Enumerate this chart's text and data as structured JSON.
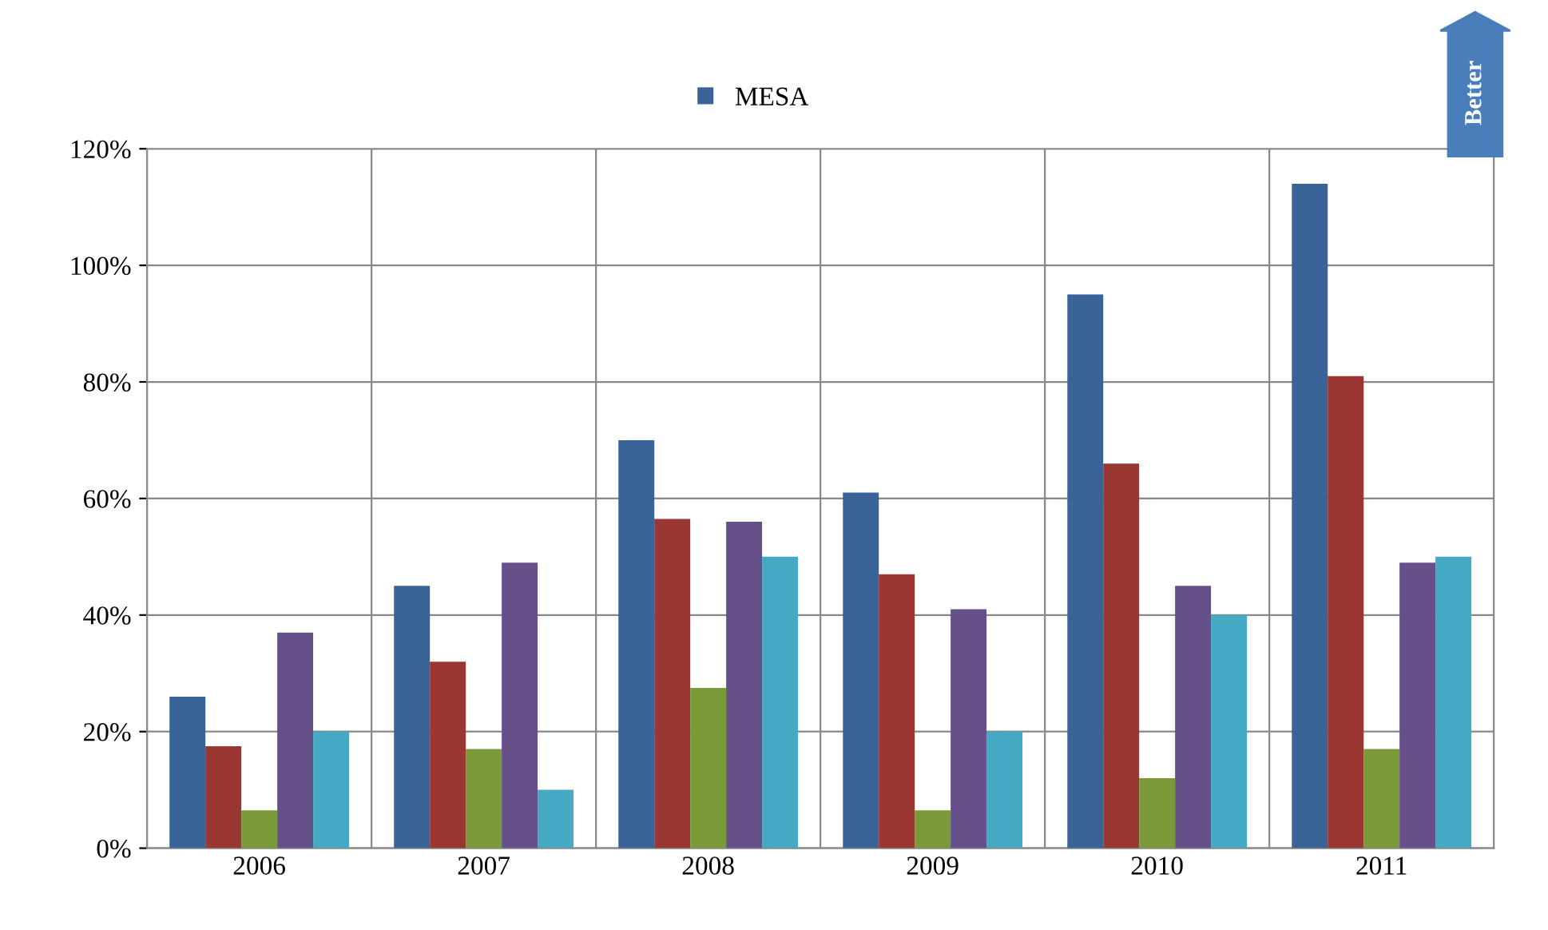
{
  "chart_data": {
    "type": "bar",
    "categories": [
      "2006",
      "2007",
      "2008",
      "2009",
      "2010",
      "2011"
    ],
    "series": [
      {
        "name": "MESA",
        "color": "#3a6398",
        "values": [
          26,
          45,
          70,
          61,
          95,
          114
        ]
      },
      {
        "color": "#9a3733",
        "values": [
          17.5,
          32,
          56.5,
          47,
          66,
          81
        ]
      },
      {
        "color": "#7a9a3a",
        "values": [
          6.5,
          17,
          27.5,
          6.5,
          12,
          17
        ]
      },
      {
        "color": "#65508a",
        "values": [
          37,
          49,
          56,
          41,
          45,
          49
        ]
      },
      {
        "color": "#45a9c4",
        "values": [
          20,
          10,
          50,
          20,
          40,
          50
        ]
      }
    ],
    "ylim": [
      0,
      120
    ],
    "yticks": [
      {
        "value": 0,
        "label": "0%"
      },
      {
        "value": 20,
        "label": "20%"
      },
      {
        "value": 40,
        "label": "40%"
      },
      {
        "value": 60,
        "label": "60%"
      },
      {
        "value": 80,
        "label": "80%"
      },
      {
        "value": 100,
        "label": "100%"
      },
      {
        "value": 120,
        "label": "120%"
      }
    ],
    "grid": true,
    "legend": "top",
    "annotations": [
      "Better"
    ]
  }
}
